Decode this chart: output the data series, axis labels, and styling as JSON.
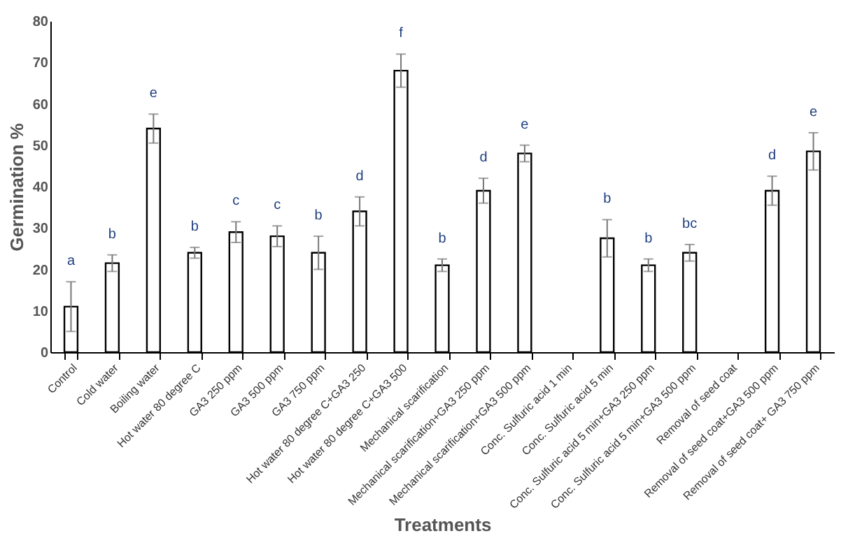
{
  "chart_data": {
    "type": "bar",
    "xlabel": "Treatments",
    "ylabel": "Germination %",
    "categories": [
      "Control",
      "Cold water",
      "Boiling water",
      "Hot water 80 degree C",
      "GA3 250 ppm",
      "GA3 500 ppm",
      "GA3 750 ppm",
      "Hot water 80 degree C+GA3 250",
      "Hot water 80 degree C+GA3 500",
      "Mechanical scarification",
      "Mechanical scarification+GA3 250 ppm",
      "Mechanical scarification+GA3 500 ppm",
      "Conc. Sulfuric acid 1 min",
      "Conc. Sulfuric acid 5 min",
      "Conc. Sulfuric acid 5 min+GA3 250 ppm",
      "Conc. Sulfuric acid 5 min+GA3 500 ppm",
      "Removal of seed coat",
      "Removal of seed coat+GA3 500 ppm",
      "Removal of seed coat+ GA3 750 ppm"
    ],
    "series": [
      {
        "color": "#ffffff",
        "values": [
          11,
          21.5,
          54,
          24,
          29,
          28,
          24,
          34,
          68,
          21,
          39,
          48,
          null,
          27.5,
          21,
          24,
          null,
          39,
          48.5
        ],
        "errors": [
          6,
          2,
          3.5,
          1.3,
          2.5,
          2.5,
          4,
          3.5,
          4,
          1.5,
          3,
          2,
          null,
          4.5,
          1.5,
          2,
          null,
          3.5,
          4.5
        ],
        "value_labels": [
          "a",
          "b",
          "e",
          "b",
          "c",
          "c",
          "b",
          "d",
          "f",
          "b",
          "d",
          "e",
          null,
          "b",
          "b",
          "bc",
          null,
          "d",
          "e"
        ]
      }
    ],
    "ylim": [
      0,
      80
    ],
    "yticks": [
      0,
      10,
      20,
      30,
      40,
      50,
      60,
      70,
      80
    ],
    "grid": false
  }
}
